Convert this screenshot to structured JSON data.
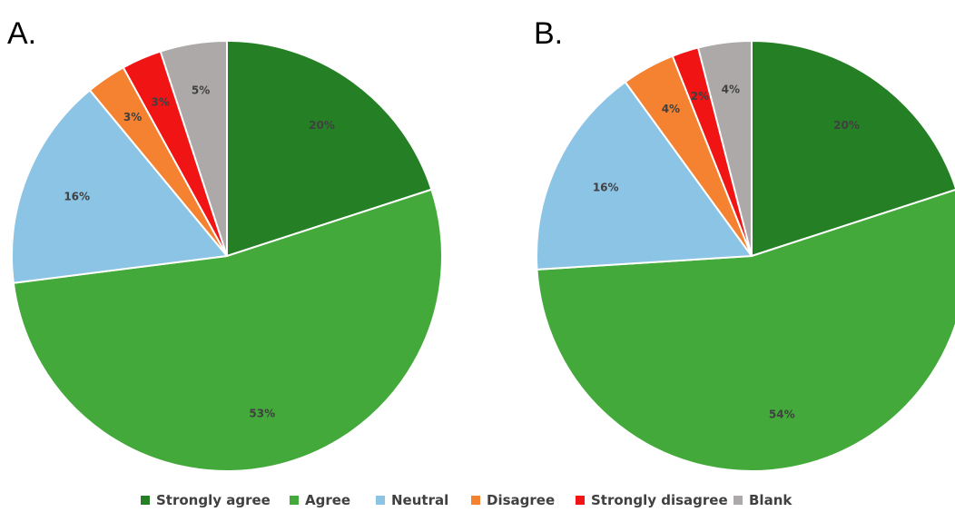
{
  "legend": {
    "position": "bottom",
    "entries": [
      {
        "label": "Strongly agree",
        "color": "#258025"
      },
      {
        "label": "Agree",
        "color": "#43a93a"
      },
      {
        "label": "Neutral",
        "color": "#8cc4e6"
      },
      {
        "label": "Disagree",
        "color": "#f58231"
      },
      {
        "label": "Strongly disagree",
        "color": "#f01414"
      },
      {
        "label": "Blank",
        "color": "#ada9a9"
      }
    ]
  },
  "chart_data": [
    {
      "type": "pie",
      "panel_label": "A.",
      "categories": [
        "Strongly agree",
        "Agree",
        "Neutral",
        "Disagree",
        "Strongly disagree",
        "Blank"
      ],
      "values": [
        20,
        53,
        16,
        3,
        3,
        5
      ],
      "labels": [
        "20%",
        "53%",
        "16%",
        "3%",
        "3%",
        "5%"
      ],
      "units": "%",
      "start": "12 o'clock",
      "direction": "clockwise"
    },
    {
      "type": "pie",
      "panel_label": "B.",
      "categories": [
        "Strongly agree",
        "Agree",
        "Neutral",
        "Disagree",
        "Strongly disagree",
        "Blank"
      ],
      "values": [
        20,
        54,
        16,
        4,
        2,
        4
      ],
      "labels": [
        "20%",
        "54%",
        "16%",
        "4%",
        "2%",
        "4%"
      ],
      "units": "%",
      "start": "12 o'clock",
      "direction": "clockwise"
    }
  ]
}
